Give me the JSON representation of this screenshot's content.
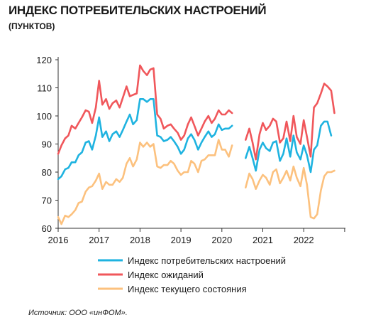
{
  "header": {
    "title": "ИНДЕКС ПОТРЕБИТЕЛЬСКИХ НАСТРОЕНИЙ",
    "subtitle": "(ПУНКТОВ)"
  },
  "footer": {
    "source": "Источник: ООО «инФОМ»."
  },
  "chart_data": {
    "type": "line",
    "title": "ИНДЕКС ПОТРЕБИТЕЛЬСКИХ НАСТРОЕНИЙ",
    "ylabel": "(ПУНКТОВ)",
    "xlim": [
      2016,
      2023
    ],
    "ylim": [
      60,
      120
    ],
    "yticks": [
      60,
      70,
      80,
      90,
      100,
      110,
      120
    ],
    "xticks": [
      2016,
      2017,
      2018,
      2019,
      2020,
      2021,
      2022
    ],
    "grid": false,
    "legend_position": "bottom-center",
    "series": [
      {
        "name": "Индекс потребительских настроений",
        "color": "#1fb3e0",
        "segments": [
          [
            [
              2016.0,
              77.5
            ],
            [
              2016.08,
              78.5
            ],
            [
              2016.17,
              81
            ],
            [
              2016.25,
              81.5
            ],
            [
              2016.33,
              83.5
            ],
            [
              2016.42,
              83.5
            ],
            [
              2016.5,
              86
            ],
            [
              2016.58,
              87
            ],
            [
              2016.67,
              90.5
            ],
            [
              2016.75,
              91
            ],
            [
              2016.83,
              88
            ],
            [
              2016.92,
              93
            ],
            [
              2017.0,
              99.5
            ],
            [
              2017.08,
              92.5
            ],
            [
              2017.17,
              94.5
            ],
            [
              2017.25,
              91
            ],
            [
              2017.33,
              93.5
            ],
            [
              2017.42,
              94.5
            ],
            [
              2017.5,
              92.5
            ],
            [
              2017.58,
              95
            ],
            [
              2017.67,
              98
            ],
            [
              2017.75,
              100.5
            ],
            [
              2017.83,
              97
            ],
            [
              2017.92,
              98.5
            ],
            [
              2018.0,
              106
            ],
            [
              2018.08,
              106
            ],
            [
              2018.17,
              105
            ],
            [
              2018.25,
              106
            ],
            [
              2018.33,
              106
            ],
            [
              2018.42,
              93
            ],
            [
              2018.5,
              92.5
            ],
            [
              2018.58,
              91
            ],
            [
              2018.67,
              91.5
            ],
            [
              2018.75,
              92.5
            ],
            [
              2018.83,
              91
            ],
            [
              2018.92,
              89
            ],
            [
              2019.0,
              86.5
            ],
            [
              2019.08,
              88
            ],
            [
              2019.17,
              92
            ],
            [
              2019.25,
              93.5
            ],
            [
              2019.33,
              91.5
            ],
            [
              2019.42,
              88
            ],
            [
              2019.5,
              90.5
            ],
            [
              2019.58,
              92.5
            ],
            [
              2019.67,
              94.5
            ],
            [
              2019.75,
              92.5
            ],
            [
              2019.83,
              93.5
            ],
            [
              2019.92,
              97
            ],
            [
              2020.0,
              95
            ],
            [
              2020.08,
              95.5
            ],
            [
              2020.17,
              95.5
            ],
            [
              2020.25,
              96.5
            ]
          ],
          [
            [
              2020.58,
              85
            ],
            [
              2020.67,
              89
            ],
            [
              2020.75,
              85
            ],
            [
              2020.83,
              80.5
            ],
            [
              2020.92,
              88
            ],
            [
              2021.0,
              90.5
            ],
            [
              2021.08,
              88.5
            ],
            [
              2021.17,
              87.5
            ],
            [
              2021.25,
              90.5
            ],
            [
              2021.33,
              91
            ],
            [
              2021.42,
              84
            ],
            [
              2021.5,
              86.5
            ],
            [
              2021.58,
              92
            ],
            [
              2021.67,
              85.5
            ],
            [
              2021.75,
              93
            ],
            [
              2021.83,
              87
            ],
            [
              2021.92,
              84.5
            ],
            [
              2022.0,
              89.5
            ],
            [
              2022.08,
              86
            ],
            [
              2022.17,
              80
            ],
            [
              2022.25,
              88
            ],
            [
              2022.33,
              89.5
            ],
            [
              2022.42,
              96.5
            ],
            [
              2022.5,
              98
            ],
            [
              2022.58,
              98
            ],
            [
              2022.67,
              93
            ]
          ]
        ]
      },
      {
        "name": "Индекс ожиданий",
        "color": "#f0575b",
        "segments": [
          [
            [
              2016.0,
              86.5
            ],
            [
              2016.08,
              89.5
            ],
            [
              2016.17,
              92
            ],
            [
              2016.25,
              93
            ],
            [
              2016.33,
              96.5
            ],
            [
              2016.42,
              95.5
            ],
            [
              2016.5,
              97.5
            ],
            [
              2016.58,
              99.5
            ],
            [
              2016.67,
              102
            ],
            [
              2016.75,
              101.5
            ],
            [
              2016.83,
              97.5
            ],
            [
              2016.92,
              103
            ],
            [
              2017.0,
              112.5
            ],
            [
              2017.08,
              104
            ],
            [
              2017.17,
              106
            ],
            [
              2017.25,
              102.5
            ],
            [
              2017.33,
              104.5
            ],
            [
              2017.42,
              105.5
            ],
            [
              2017.5,
              103
            ],
            [
              2017.58,
              106.5
            ],
            [
              2017.67,
              110.5
            ],
            [
              2017.75,
              107
            ],
            [
              2017.83,
              107.5
            ],
            [
              2017.92,
              108
            ],
            [
              2018.0,
              118
            ],
            [
              2018.08,
              116
            ],
            [
              2018.17,
              114.5
            ],
            [
              2018.25,
              116.5
            ],
            [
              2018.33,
              117
            ],
            [
              2018.42,
              100.5
            ],
            [
              2018.5,
              99
            ],
            [
              2018.58,
              95.5
            ],
            [
              2018.67,
              96.5
            ],
            [
              2018.75,
              97
            ],
            [
              2018.83,
              95.5
            ],
            [
              2018.92,
              94
            ],
            [
              2019.0,
              91.5
            ],
            [
              2019.08,
              93
            ],
            [
              2019.17,
              97
            ],
            [
              2019.25,
              99.5
            ],
            [
              2019.33,
              96.5
            ],
            [
              2019.42,
              93
            ],
            [
              2019.5,
              95.5
            ],
            [
              2019.58,
              98
            ],
            [
              2019.67,
              100
            ],
            [
              2019.75,
              97.5
            ],
            [
              2019.83,
              99
            ],
            [
              2019.92,
              102
            ],
            [
              2020.0,
              100.5
            ],
            [
              2020.08,
              100.5
            ],
            [
              2020.17,
              102
            ],
            [
              2020.25,
              101
            ]
          ],
          [
            [
              2020.58,
              91.5
            ],
            [
              2020.67,
              95.5
            ],
            [
              2020.75,
              90.5
            ],
            [
              2020.83,
              84.5
            ],
            [
              2020.92,
              93.5
            ],
            [
              2021.0,
              97.5
            ],
            [
              2021.08,
              95
            ],
            [
              2021.17,
              96.5
            ],
            [
              2021.25,
              99
            ],
            [
              2021.33,
              98
            ],
            [
              2021.42,
              90.5
            ],
            [
              2021.5,
              92
            ],
            [
              2021.58,
              98
            ],
            [
              2021.67,
              91
            ],
            [
              2021.75,
              100
            ],
            [
              2021.83,
              92.5
            ],
            [
              2021.92,
              90
            ],
            [
              2022.0,
              98.5
            ],
            [
              2022.08,
              92.5
            ],
            [
              2022.17,
              85.5
            ],
            [
              2022.25,
              103
            ],
            [
              2022.33,
              104.5
            ],
            [
              2022.42,
              108
            ],
            [
              2022.5,
              111.5
            ],
            [
              2022.58,
              110.5
            ],
            [
              2022.67,
              109
            ],
            [
              2022.75,
              101
            ]
          ]
        ]
      },
      {
        "name": "Индекс текущего состояния",
        "color": "#fcc17e",
        "segments": [
          [
            [
              2016.0,
              64
            ],
            [
              2016.08,
              61.5
            ],
            [
              2016.17,
              64.5
            ],
            [
              2016.25,
              64
            ],
            [
              2016.33,
              65
            ],
            [
              2016.42,
              66.5
            ],
            [
              2016.5,
              69
            ],
            [
              2016.58,
              69.5
            ],
            [
              2016.67,
              73
            ],
            [
              2016.75,
              74.5
            ],
            [
              2016.83,
              75
            ],
            [
              2016.92,
              77
            ],
            [
              2017.0,
              79.5
            ],
            [
              2017.08,
              74
            ],
            [
              2017.17,
              76.5
            ],
            [
              2017.25,
              75.5
            ],
            [
              2017.33,
              75.5
            ],
            [
              2017.42,
              77.5
            ],
            [
              2017.5,
              76.5
            ],
            [
              2017.58,
              78
            ],
            [
              2017.67,
              83
            ],
            [
              2017.75,
              85
            ],
            [
              2017.83,
              82
            ],
            [
              2017.92,
              84.5
            ],
            [
              2018.0,
              90.5
            ],
            [
              2018.08,
              89
            ],
            [
              2018.17,
              90.5
            ],
            [
              2018.25,
              89
            ],
            [
              2018.33,
              90
            ],
            [
              2018.42,
              82
            ],
            [
              2018.5,
              81.5
            ],
            [
              2018.58,
              82.5
            ],
            [
              2018.67,
              82.5
            ],
            [
              2018.75,
              84
            ],
            [
              2018.83,
              83
            ],
            [
              2018.92,
              80.5
            ],
            [
              2019.0,
              79
            ],
            [
              2019.08,
              80
            ],
            [
              2019.17,
              80
            ],
            [
              2019.25,
              84
            ],
            [
              2019.33,
              83
            ],
            [
              2019.42,
              80
            ],
            [
              2019.5,
              84
            ],
            [
              2019.58,
              84.5
            ],
            [
              2019.67,
              86
            ],
            [
              2019.75,
              86
            ],
            [
              2019.83,
              86
            ],
            [
              2019.92,
              91.5
            ],
            [
              2020.0,
              88
            ],
            [
              2020.08,
              88
            ],
            [
              2020.17,
              85.5
            ],
            [
              2020.25,
              89.5
            ]
          ],
          [
            [
              2020.58,
              74.5
            ],
            [
              2020.67,
              79.5
            ],
            [
              2020.75,
              77.5
            ],
            [
              2020.83,
              74
            ],
            [
              2020.92,
              77
            ],
            [
              2021.0,
              79
            ],
            [
              2021.08,
              78
            ],
            [
              2021.17,
              75.5
            ],
            [
              2021.25,
              80
            ],
            [
              2021.33,
              81
            ],
            [
              2021.42,
              76
            ],
            [
              2021.5,
              78
            ],
            [
              2021.58,
              80.5
            ],
            [
              2021.67,
              77
            ],
            [
              2021.75,
              82
            ],
            [
              2021.83,
              78
            ],
            [
              2021.92,
              75
            ],
            [
              2022.0,
              81.5
            ],
            [
              2022.08,
              75.5
            ],
            [
              2022.17,
              64
            ],
            [
              2022.25,
              63.5
            ],
            [
              2022.33,
              65
            ],
            [
              2022.42,
              73.5
            ],
            [
              2022.5,
              78.5
            ],
            [
              2022.58,
              80
            ],
            [
              2022.67,
              80
            ],
            [
              2022.75,
              80.5
            ]
          ]
        ]
      }
    ]
  }
}
